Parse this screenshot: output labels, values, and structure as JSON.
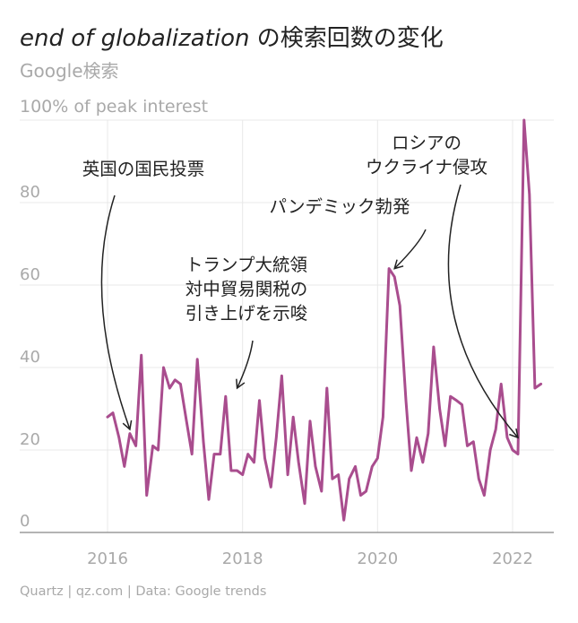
{
  "title_italic": "end of globalization",
  "title_rest": " の検索回数の変化",
  "subtitle": "Google検索",
  "source": "Quartz | qz.com | Data: Google trends",
  "colors": {
    "line": "#a94d8e",
    "axis": "#888888",
    "grid": "#e8e8e8",
    "text": "#222222",
    "muted": "#a9a9a9"
  },
  "chart_data": {
    "type": "line",
    "ylabel": "100% of peak interest",
    "ylim": [
      0,
      100
    ],
    "yticks": [
      0,
      20,
      40,
      60,
      80
    ],
    "xlim": [
      2015.0,
      2022.65
    ],
    "xticks": [
      2016,
      2018,
      2020,
      2022
    ],
    "grid": true,
    "series": [
      {
        "values": [
          [
            2016.0,
            28
          ],
          [
            2016.08,
            29
          ],
          [
            2016.17,
            23
          ],
          [
            2016.25,
            16
          ],
          [
            2016.33,
            24
          ],
          [
            2016.42,
            21
          ],
          [
            2016.5,
            43
          ],
          [
            2016.58,
            9
          ],
          [
            2016.67,
            21
          ],
          [
            2016.75,
            20
          ],
          [
            2016.83,
            40
          ],
          [
            2016.92,
            35
          ],
          [
            2017.0,
            37
          ],
          [
            2017.08,
            36
          ],
          [
            2017.17,
            27
          ],
          [
            2017.25,
            19
          ],
          [
            2017.33,
            42
          ],
          [
            2017.42,
            22
          ],
          [
            2017.5,
            8
          ],
          [
            2017.58,
            19
          ],
          [
            2017.67,
            19
          ],
          [
            2017.75,
            33
          ],
          [
            2017.83,
            15
          ],
          [
            2017.92,
            15
          ],
          [
            2018.0,
            14
          ],
          [
            2018.08,
            19
          ],
          [
            2018.17,
            17
          ],
          [
            2018.25,
            32
          ],
          [
            2018.33,
            18
          ],
          [
            2018.42,
            11
          ],
          [
            2018.5,
            23
          ],
          [
            2018.58,
            38
          ],
          [
            2018.67,
            14
          ],
          [
            2018.75,
            28
          ],
          [
            2018.83,
            17
          ],
          [
            2018.92,
            7
          ],
          [
            2019.0,
            27
          ],
          [
            2019.08,
            16
          ],
          [
            2019.17,
            10
          ],
          [
            2019.25,
            35
          ],
          [
            2019.33,
            13
          ],
          [
            2019.42,
            14
          ],
          [
            2019.5,
            3
          ],
          [
            2019.58,
            13
          ],
          [
            2019.67,
            16
          ],
          [
            2019.75,
            9
          ],
          [
            2019.83,
            10
          ],
          [
            2019.92,
            16
          ],
          [
            2020.0,
            18
          ],
          [
            2020.08,
            28
          ],
          [
            2020.17,
            64
          ],
          [
            2020.25,
            62
          ],
          [
            2020.33,
            55
          ],
          [
            2020.42,
            32
          ],
          [
            2020.5,
            15
          ],
          [
            2020.58,
            23
          ],
          [
            2020.67,
            17
          ],
          [
            2020.75,
            24
          ],
          [
            2020.83,
            45
          ],
          [
            2020.92,
            30
          ],
          [
            2021.0,
            21
          ],
          [
            2021.08,
            33
          ],
          [
            2021.17,
            32
          ],
          [
            2021.25,
            31
          ],
          [
            2021.33,
            21
          ],
          [
            2021.42,
            22
          ],
          [
            2021.5,
            13
          ],
          [
            2021.58,
            9
          ],
          [
            2021.67,
            20
          ],
          [
            2021.75,
            25
          ],
          [
            2021.83,
            36
          ],
          [
            2021.92,
            23
          ],
          [
            2022.0,
            20
          ],
          [
            2022.08,
            19
          ],
          [
            2022.17,
            100
          ],
          [
            2022.25,
            82
          ],
          [
            2022.33,
            35
          ],
          [
            2022.42,
            36
          ]
        ]
      }
    ],
    "annotations": [
      {
        "lines": [
          "英国の国民投票"
        ],
        "target": [
          2016.33,
          25
        ]
      },
      {
        "lines": [
          "トランプ大統領",
          "対中貿易関税の",
          "引き上げを示唆"
        ],
        "target": [
          2017.92,
          35
        ]
      },
      {
        "lines": [
          "パンデミック勃発"
        ],
        "target": [
          2020.25,
          64
        ]
      },
      {
        "lines": [
          "ロシアの",
          "ウクライナ侵攻"
        ],
        "target": [
          2022.08,
          23
        ]
      }
    ]
  }
}
